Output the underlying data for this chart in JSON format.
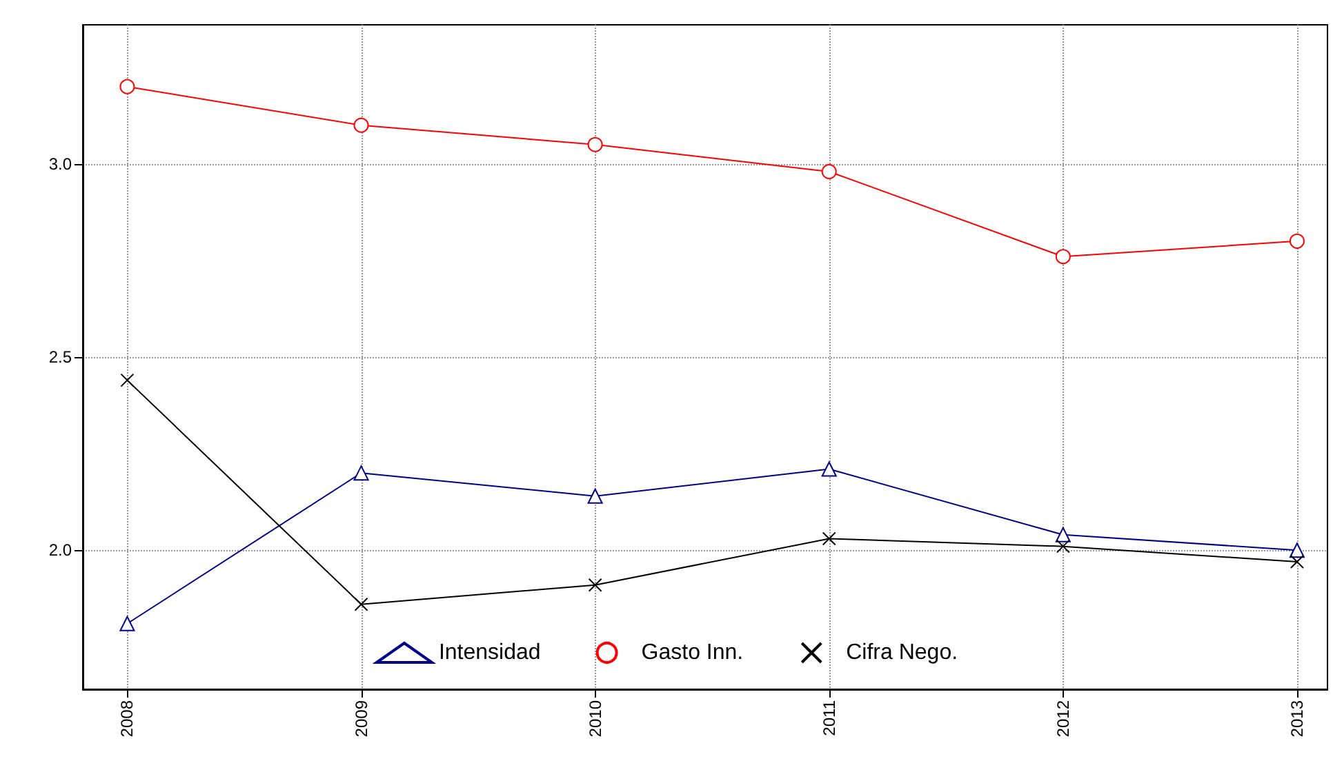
{
  "chart_data": {
    "type": "line",
    "x": [
      2008,
      2009,
      2010,
      2011,
      2012,
      2013
    ],
    "xlim": [
      2007.81,
      2013.13
    ],
    "xticks": [
      2008,
      2009,
      2010,
      2011,
      2012,
      2013
    ],
    "ylim": [
      1.64,
      3.36
    ],
    "yticks": [
      {
        "value": 2.0,
        "label": "2.0"
      },
      {
        "value": 2.5,
        "label": "2.5"
      },
      {
        "value": 3.0,
        "label": "3.0"
      }
    ],
    "grid": true,
    "legend": "bottom",
    "series": [
      {
        "name": "Intensidad",
        "color": "#00008b",
        "marker": "triangle",
        "values": [
          1.81,
          2.2,
          2.14,
          2.21,
          2.04,
          2.0
        ]
      },
      {
        "name": "Gasto Inn.",
        "color": "#ff0000",
        "marker": "circle",
        "values": [
          3.2,
          3.1,
          3.05,
          2.98,
          2.76,
          2.8
        ]
      },
      {
        "name": "Cifra Nego.",
        "color": "#000000",
        "marker": "cross",
        "values": [
          2.44,
          1.86,
          1.91,
          2.03,
          2.01,
          1.97
        ]
      }
    ]
  }
}
